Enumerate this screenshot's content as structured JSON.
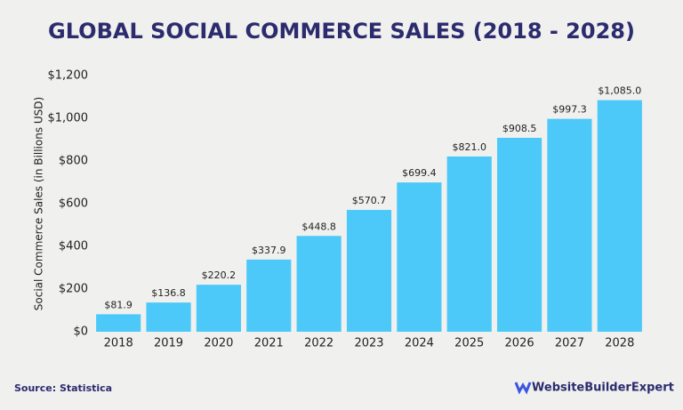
{
  "chart_data": {
    "type": "bar",
    "title": "GLOBAL SOCIAL COMMERCE SALES (2018 - 2028)",
    "y_label": "Social Commerce Sales (in Billions USD)",
    "source": "Source: Statistica",
    "brand": "WebsiteBuilderExpert",
    "categories": [
      "2018",
      "2019",
      "2020",
      "2021",
      "2022",
      "2023",
      "2024",
      "2025",
      "2026",
      "2027",
      "2028"
    ],
    "values": [
      81.9,
      136.8,
      220.2,
      337.9,
      448.8,
      570.7,
      699.4,
      821.0,
      908.5,
      997.3,
      1085.0
    ],
    "value_labels": [
      "$81.9",
      "$136.8",
      "$220.2",
      "$337.9",
      "$448.8",
      "$570.7",
      "$699.4",
      "$821.0",
      "$908.5",
      "$997.3",
      "$1,085.0"
    ],
    "color": "#4cc9f8",
    "ylim": [
      0,
      1200
    ],
    "yticks": [
      {
        "value": 0,
        "label": "$0"
      },
      {
        "value": 200,
        "label": "$200"
      },
      {
        "value": 400,
        "label": "$400"
      },
      {
        "value": 600,
        "label": "$600"
      },
      {
        "value": 800,
        "label": "$800"
      },
      {
        "value": 1000,
        "label": "$1,000"
      },
      {
        "value": 1200,
        "label": "$1,200"
      }
    ],
    "grid": false
  }
}
